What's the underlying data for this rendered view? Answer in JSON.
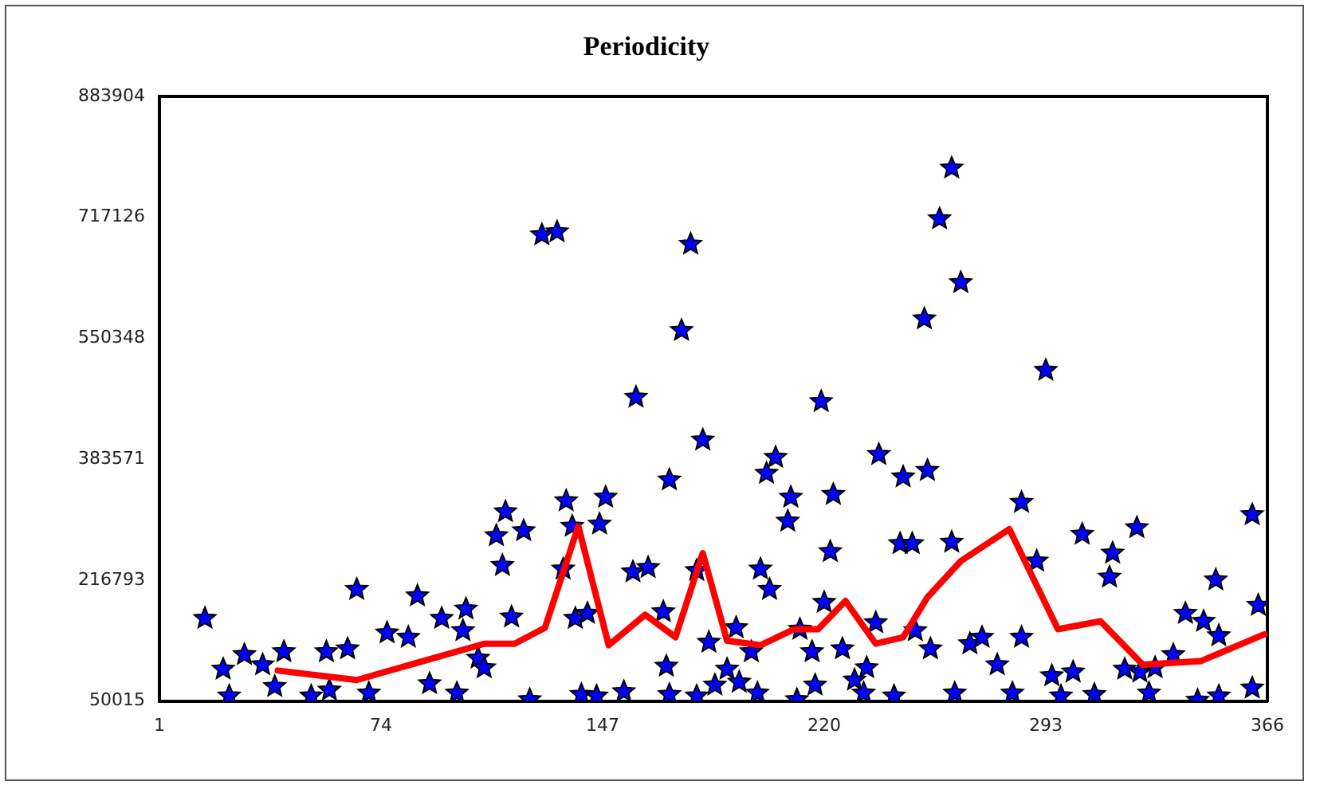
{
  "chart_data": {
    "type": "scatter",
    "title": "Periodicity",
    "xlim": [
      1,
      366
    ],
    "xticks": [
      1,
      74,
      147,
      220,
      293,
      366
    ],
    "ylim": [
      50015,
      883904
    ],
    "yticks": [
      50015,
      216793,
      383571,
      550348,
      717126,
      883904
    ],
    "grid": false,
    "legend": false,
    "marker": "star",
    "series": [
      {
        "color": "#0000ff",
        "x": [
          16,
          22,
          24,
          29,
          35,
          39,
          42,
          51,
          57,
          56,
          63,
          66,
          70,
          76,
          83,
          86,
          90,
          94,
          99,
          101,
          102,
          106,
          108,
          112,
          114,
          115,
          117,
          121,
          123,
          127,
          132,
          134,
          135,
          137,
          138,
          140,
          145,
          146,
          148,
          142,
          154,
          157,
          158,
          162,
          167,
          168,
          169,
          169,
          173,
          176,
          178,
          180,
          182,
          188,
          184,
          192,
          191,
          196,
          201,
          204,
          202,
          208,
          209,
          199,
          212,
          216,
          217,
          211,
          220,
          222,
          223,
          219,
          226,
          230,
          234,
          237,
          238,
          246,
          245,
          249,
          250,
          254,
          253,
          255,
          262,
          258,
          262,
          265,
          263,
          268,
          272,
          277,
          282,
          285,
          285,
          290,
          293,
          295,
          302,
          305,
          309,
          314,
          315,
          319,
          324,
          327,
          329,
          335,
          339,
          343,
          345,
          349,
          350,
          361,
          363,
          361,
          323,
          178,
          198,
          233,
          243,
          298,
          350
        ],
        "values": [
          164000,
          94000,
          57000,
          114000,
          100000,
          70000,
          118000,
          57000,
          65000,
          118000,
          122000,
          204000,
          61000,
          144000,
          138000,
          195000,
          74000,
          164000,
          61000,
          147000,
          177000,
          109000,
          96000,
          278000,
          237000,
          311000,
          166000,
          285000,
          52000,
          693000,
          697000,
          232000,
          326000,
          291000,
          164000,
          59000,
          57000,
          294000,
          331000,
          171000,
          63000,
          228000,
          469000,
          234000,
          173000,
          98000,
          59000,
          355000,
          561000,
          680000,
          230000,
          410000,
          131000,
          94000,
          72000,
          76000,
          151000,
          118000,
          364000,
          386000,
          204000,
          298000,
          331000,
          232000,
          149000,
          118000,
          72000,
          52000,
          186000,
          256000,
          335000,
          463000,
          122000,
          79000,
          96000,
          158000,
          390000,
          359000,
          267000,
          267000,
          147000,
          368000,
          577000,
          122000,
          269000,
          715000,
          785000,
          627000,
          61000,
          129000,
          138000,
          100000,
          61000,
          324000,
          138000,
          243000,
          506000,
          85000,
          90000,
          280000,
          59000,
          221000,
          254000,
          94000,
          90000,
          61000,
          96000,
          114000,
          171000,
          51000,
          160000,
          217000,
          140000,
          307000,
          182000,
          68000,
          289000,
          57000,
          61000,
          61000,
          57000,
          57000,
          57000
        ]
      },
      {
        "type": "line",
        "color": "#ff0000",
        "marker": "none",
        "x": [
          40,
          66,
          108,
          118,
          128,
          139,
          149,
          161,
          171,
          180,
          188,
          199,
          210,
          218,
          227,
          237,
          246,
          254,
          265,
          281,
          297,
          311,
          325,
          344,
          365
        ],
        "values": [
          92000,
          79000,
          129000,
          129000,
          151000,
          291000,
          127000,
          169000,
          138000,
          254000,
          133000,
          127000,
          149000,
          149000,
          188000,
          129000,
          138000,
          193000,
          243000,
          287000,
          149000,
          160000,
          100000,
          105000,
          142000
        ]
      }
    ]
  }
}
